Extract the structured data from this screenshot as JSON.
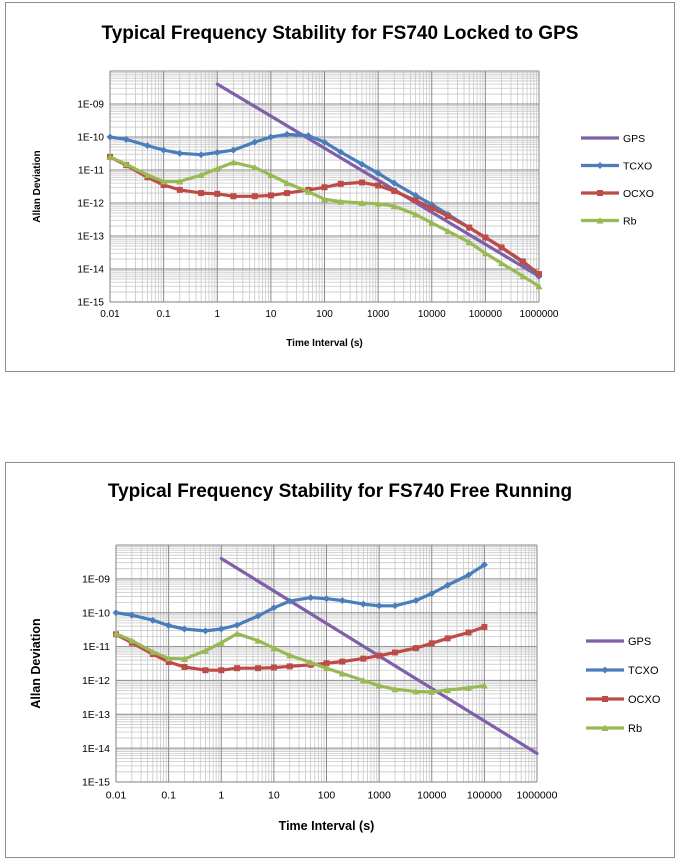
{
  "chart_data": [
    {
      "type": "line",
      "title": "Typical Frequency Stability for FS740 Locked to GPS",
      "xlabel": "Time Interval (s)",
      "ylabel": "Allan Deviation",
      "x_scale": "log",
      "y_scale": "log",
      "xlim": [
        0.01,
        1000000
      ],
      "ylim": [
        1e-15,
        1e-08
      ],
      "x_ticks": [
        "0.01",
        "0.1",
        "1",
        "10",
        "100",
        "1000",
        "10000",
        "100000",
        "1000000"
      ],
      "y_ticks": [
        "1E-15",
        "1E-14",
        "1E-13",
        "1E-12",
        "1E-11",
        "1E-10",
        "1E-09"
      ],
      "grid": true,
      "legend_position": "right",
      "series": [
        {
          "name": "GPS",
          "color": "#7f5fa8",
          "x": [
            1,
            1000000
          ],
          "y": [
            4e-09,
            6e-15
          ]
        },
        {
          "name": "TCXO",
          "color": "#4a7ebb",
          "x": [
            0.01,
            0.02,
            0.05,
            0.1,
            0.2,
            0.5,
            1,
            2,
            5,
            10,
            20,
            50,
            100,
            200,
            500,
            1000,
            2000,
            5000,
            10000,
            20000,
            50000,
            100000,
            200000,
            500000,
            1000000
          ],
          "y": [
            1e-10,
            8.5e-11,
            5.5e-11,
            4e-11,
            3.2e-11,
            2.9e-11,
            3.4e-11,
            4e-11,
            7e-11,
            1e-10,
            1.2e-10,
            1.1e-10,
            7e-11,
            3.5e-11,
            1.5e-11,
            8e-12,
            4e-12,
            1.7e-12,
            9e-13,
            4.5e-13,
            1.8e-13,
            9e-14,
            4.5e-14,
            1.6e-14,
            6e-15
          ]
        },
        {
          "name": "OCXO",
          "color": "#be4b48",
          "x": [
            0.01,
            0.02,
            0.05,
            0.1,
            0.2,
            0.5,
            1,
            2,
            5,
            10,
            20,
            50,
            100,
            200,
            500,
            1000,
            2000,
            5000,
            10000,
            20000,
            50000,
            100000,
            200000,
            500000,
            1000000
          ],
          "y": [
            2.5e-11,
            1.4e-11,
            6e-12,
            3.5e-12,
            2.5e-12,
            2e-12,
            1.9e-12,
            1.6e-12,
            1.6e-12,
            1.7e-12,
            2e-12,
            2.5e-12,
            3e-12,
            3.8e-12,
            4.2e-12,
            3.4e-12,
            2.3e-12,
            1.2e-12,
            7e-13,
            4e-13,
            1.8e-13,
            9e-14,
            4.5e-14,
            1.7e-14,
            7e-15
          ]
        },
        {
          "name": "Rb",
          "color": "#98b954",
          "x": [
            0.01,
            0.02,
            0.05,
            0.1,
            0.2,
            0.5,
            1,
            2,
            5,
            10,
            20,
            50,
            100,
            200,
            500,
            1000,
            2000,
            5000,
            10000,
            20000,
            50000,
            100000,
            200000,
            500000,
            1000000
          ],
          "y": [
            2.5e-11,
            1.5e-11,
            7e-12,
            4.5e-12,
            4.5e-12,
            7e-12,
            1.1e-11,
            1.7e-11,
            1.2e-11,
            7e-12,
            4e-12,
            2.2e-12,
            1.3e-12,
            1.1e-12,
            1e-12,
            9.5e-13,
            8e-13,
            4.5e-13,
            2.5e-13,
            1.4e-13,
            6.5e-14,
            3e-14,
            1.5e-14,
            6e-15,
            3e-15
          ]
        }
      ]
    },
    {
      "type": "line",
      "title": "Typical Frequency Stability for FS740 Free Running",
      "xlabel": "Time Interval (s)",
      "ylabel": "Allan Deviation",
      "x_scale": "log",
      "y_scale": "log",
      "xlim": [
        0.01,
        1000000
      ],
      "ylim": [
        1e-15,
        1e-08
      ],
      "x_ticks": [
        "0.01",
        "0.1",
        "1",
        "10",
        "100",
        "1000",
        "10000",
        "100000",
        "1000000"
      ],
      "y_ticks": [
        "1E-15",
        "1E-14",
        "1E-13",
        "1E-12",
        "1E-11",
        "1E-10",
        "1E-09"
      ],
      "grid": true,
      "legend_position": "right",
      "series": [
        {
          "name": "GPS",
          "color": "#7f5fa8",
          "x": [
            1,
            1000000
          ],
          "y": [
            4e-09,
            7e-15
          ]
        },
        {
          "name": "TCXO",
          "color": "#4a7ebb",
          "x": [
            0.01,
            0.02,
            0.05,
            0.1,
            0.2,
            0.5,
            1,
            2,
            5,
            10,
            20,
            50,
            100,
            200,
            500,
            1000,
            2000,
            5000,
            10000,
            20000,
            50000,
            100000
          ],
          "y": [
            1e-10,
            8.5e-11,
            6e-11,
            4.2e-11,
            3.3e-11,
            2.9e-11,
            3.3e-11,
            4.3e-11,
            8e-11,
            1.4e-10,
            2.2e-10,
            2.8e-10,
            2.6e-10,
            2.3e-10,
            1.8e-10,
            1.6e-10,
            1.6e-10,
            2.3e-10,
            3.7e-10,
            6.5e-10,
            1.3e-09,
            2.6e-09
          ]
        },
        {
          "name": "OCXO",
          "color": "#be4b48",
          "x": [
            0.01,
            0.02,
            0.05,
            0.1,
            0.2,
            0.5,
            1,
            2,
            5,
            10,
            20,
            50,
            100,
            200,
            500,
            1000,
            2000,
            5000,
            10000,
            20000,
            50000,
            100000
          ],
          "y": [
            2.3e-11,
            1.3e-11,
            6e-12,
            3.5e-12,
            2.5e-12,
            2e-12,
            2e-12,
            2.3e-12,
            2.3e-12,
            2.4e-12,
            2.6e-12,
            2.9e-12,
            3.2e-12,
            3.6e-12,
            4.4e-12,
            5.4e-12,
            6.7e-12,
            9e-12,
            1.25e-11,
            1.75e-11,
            2.6e-11,
            3.8e-11
          ]
        },
        {
          "name": "Rb",
          "color": "#98b954",
          "x": [
            0.01,
            0.02,
            0.05,
            0.1,
            0.2,
            0.5,
            1,
            2,
            5,
            10,
            20,
            50,
            100,
            200,
            500,
            1000,
            2000,
            5000,
            10000,
            20000,
            50000,
            100000
          ],
          "y": [
            2.4e-11,
            1.5e-11,
            7e-12,
            4.5e-12,
            4.3e-12,
            7.5e-12,
            1.3e-11,
            2.4e-11,
            1.5e-11,
            9e-12,
            5.5e-12,
            3.4e-12,
            2.3e-12,
            1.6e-12,
            1e-12,
            7e-13,
            5.5e-13,
            4.7e-13,
            4.6e-13,
            5.2e-13,
            6e-13,
            7e-13
          ]
        }
      ]
    }
  ]
}
